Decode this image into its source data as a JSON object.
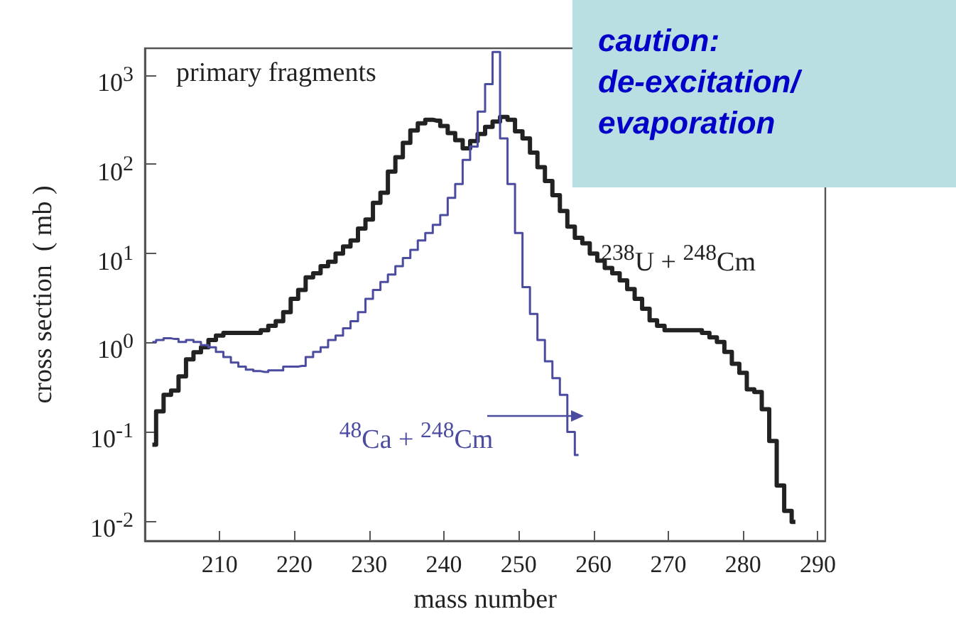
{
  "chart_data": {
    "type": "step",
    "xlabel": "mass number",
    "ylabel": "cross section  ( mb )",
    "annotations": [
      "primary fragments",
      "caution:\nde-excitation/\nevaporation"
    ],
    "log": "y",
    "grid": false,
    "legend": false,
    "marker": "none",
    "line_style": "solid",
    "xlim": [
      200,
      291
    ],
    "xticks": [
      210,
      220,
      230,
      240,
      250,
      260,
      270,
      280,
      290
    ],
    "ylim": [
      0.006,
      2000
    ],
    "yticks": [
      {
        "value": 0.01,
        "label": "10$^{-2}$"
      },
      {
        "value": 0.1,
        "label": "10$^{-1}$"
      },
      {
        "value": 1,
        "label": "10$^{0}$"
      },
      {
        "value": 10,
        "label": "10$^{1}$"
      },
      {
        "value": 100,
        "label": "10$^{2}$"
      },
      {
        "value": 1000,
        "label": "10$^{3}$"
      }
    ],
    "series": [
      {
        "name": "$^{238}$U + $^{248}$Cm",
        "color": "#222222",
        "x": [
          201,
          202,
          203,
          204,
          205,
          206,
          207,
          208,
          209,
          210,
          211,
          212,
          213,
          214,
          215,
          216,
          217,
          218,
          219,
          220,
          221,
          222,
          223,
          224,
          225,
          226,
          227,
          228,
          229,
          230,
          231,
          232,
          233,
          234,
          235,
          236,
          237,
          238,
          239,
          240,
          241,
          242,
          243,
          244,
          245,
          246,
          247,
          248,
          249,
          250,
          251,
          252,
          253,
          254,
          255,
          256,
          257,
          258,
          259,
          260,
          261,
          262,
          263,
          264,
          265,
          266,
          267,
          268,
          269,
          270,
          271,
          272,
          273,
          274,
          275,
          276,
          277,
          278,
          279,
          280,
          281,
          282,
          283,
          284,
          285,
          286,
          287
        ],
        "values": [
          0.072,
          0.17,
          0.26,
          0.29,
          0.42,
          0.65,
          0.78,
          0.89,
          1.07,
          1.2,
          1.29,
          1.29,
          1.29,
          1.29,
          1.29,
          1.38,
          1.55,
          1.74,
          2.2,
          3.1,
          3.9,
          5.4,
          6.0,
          7.2,
          8.1,
          10,
          12,
          14,
          19,
          24,
          37,
          48,
          83,
          120,
          174,
          240,
          288,
          316,
          309,
          269,
          224,
          186,
          151,
          182,
          219,
          263,
          302,
          339,
          316,
          234,
          195,
          135,
          93,
          65,
          45,
          30,
          20,
          15,
          13,
          10,
          8.3,
          6.9,
          6.0,
          5.0,
          4.0,
          3.1,
          2.4,
          1.78,
          1.55,
          1.38,
          1.38,
          1.38,
          1.38,
          1.38,
          1.29,
          1.15,
          1.02,
          0.79,
          0.58,
          0.46,
          0.3,
          0.28,
          0.18,
          0.079,
          0.025,
          0.013,
          0.0098
        ]
      },
      {
        "name": "$^{48}$Ca + $^{248}$Cm",
        "color": "#4b4ba0",
        "x": [
          201,
          202,
          203,
          204,
          205,
          206,
          207,
          208,
          209,
          210,
          211,
          212,
          213,
          214,
          215,
          216,
          217,
          218,
          219,
          220,
          221,
          222,
          223,
          224,
          225,
          226,
          227,
          228,
          229,
          230,
          231,
          232,
          233,
          234,
          235,
          236,
          237,
          238,
          239,
          240,
          241,
          242,
          243,
          244,
          245,
          246,
          247,
          248,
          249,
          250,
          251,
          252,
          253,
          254,
          255,
          256,
          257,
          258
        ],
        "values": [
          1.02,
          1.07,
          1.12,
          1.1,
          1.02,
          1.07,
          1.02,
          0.94,
          0.89,
          0.79,
          0.69,
          0.6,
          0.54,
          0.5,
          0.48,
          0.47,
          0.49,
          0.49,
          0.54,
          0.54,
          0.55,
          0.69,
          0.79,
          0.89,
          1.07,
          1.2,
          1.45,
          1.74,
          2.2,
          3.1,
          3.9,
          4.8,
          5.8,
          7.2,
          8.9,
          11,
          14,
          17,
          21,
          27,
          42,
          60,
          112,
          158,
          389,
          794,
          1820,
          195,
          60,
          17,
          4.2,
          2.1,
          1.07,
          0.62,
          0.4,
          0.26,
          0.1,
          0.055
        ]
      }
    ]
  }
}
